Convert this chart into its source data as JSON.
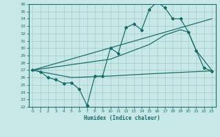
{
  "xlabel": "Humidex (Indice chaleur)",
  "xlim": [
    -0.5,
    23.5
  ],
  "ylim": [
    22,
    36
  ],
  "xticks": [
    0,
    1,
    2,
    3,
    4,
    5,
    6,
    7,
    8,
    9,
    10,
    11,
    12,
    13,
    14,
    15,
    16,
    17,
    18,
    19,
    20,
    21,
    22,
    23
  ],
  "yticks": [
    22,
    23,
    24,
    25,
    26,
    27,
    28,
    29,
    30,
    31,
    32,
    33,
    34,
    35,
    36
  ],
  "bg_color": "#c8e8e8",
  "line_color": "#1a6b6b",
  "grid_color": "#a8d0d0",
  "line1_x": [
    0,
    1,
    2,
    3,
    4,
    5,
    6,
    7,
    8,
    9,
    10,
    11,
    12,
    13,
    14,
    15,
    16,
    17,
    18,
    19,
    20,
    21,
    22,
    23
  ],
  "line1_y": [
    27.0,
    26.8,
    26.0,
    25.7,
    25.2,
    25.3,
    24.4,
    22.2,
    26.2,
    26.2,
    30.0,
    29.3,
    32.8,
    33.3,
    32.5,
    35.3,
    36.3,
    35.5,
    34.0,
    34.0,
    32.2,
    29.7,
    27.3,
    26.9
  ],
  "line2_x": [
    0,
    23
  ],
  "line2_y": [
    27.0,
    34.0
  ],
  "line3_x": [
    0,
    10,
    15,
    17,
    19,
    20,
    21,
    23
  ],
  "line3_y": [
    27.0,
    28.5,
    30.5,
    31.8,
    32.5,
    32.2,
    29.7,
    27.0
  ],
  "line4_x": [
    0,
    5,
    10,
    15,
    19,
    21,
    23
  ],
  "line4_y": [
    27.0,
    26.0,
    26.2,
    26.5,
    26.7,
    26.8,
    26.9
  ]
}
